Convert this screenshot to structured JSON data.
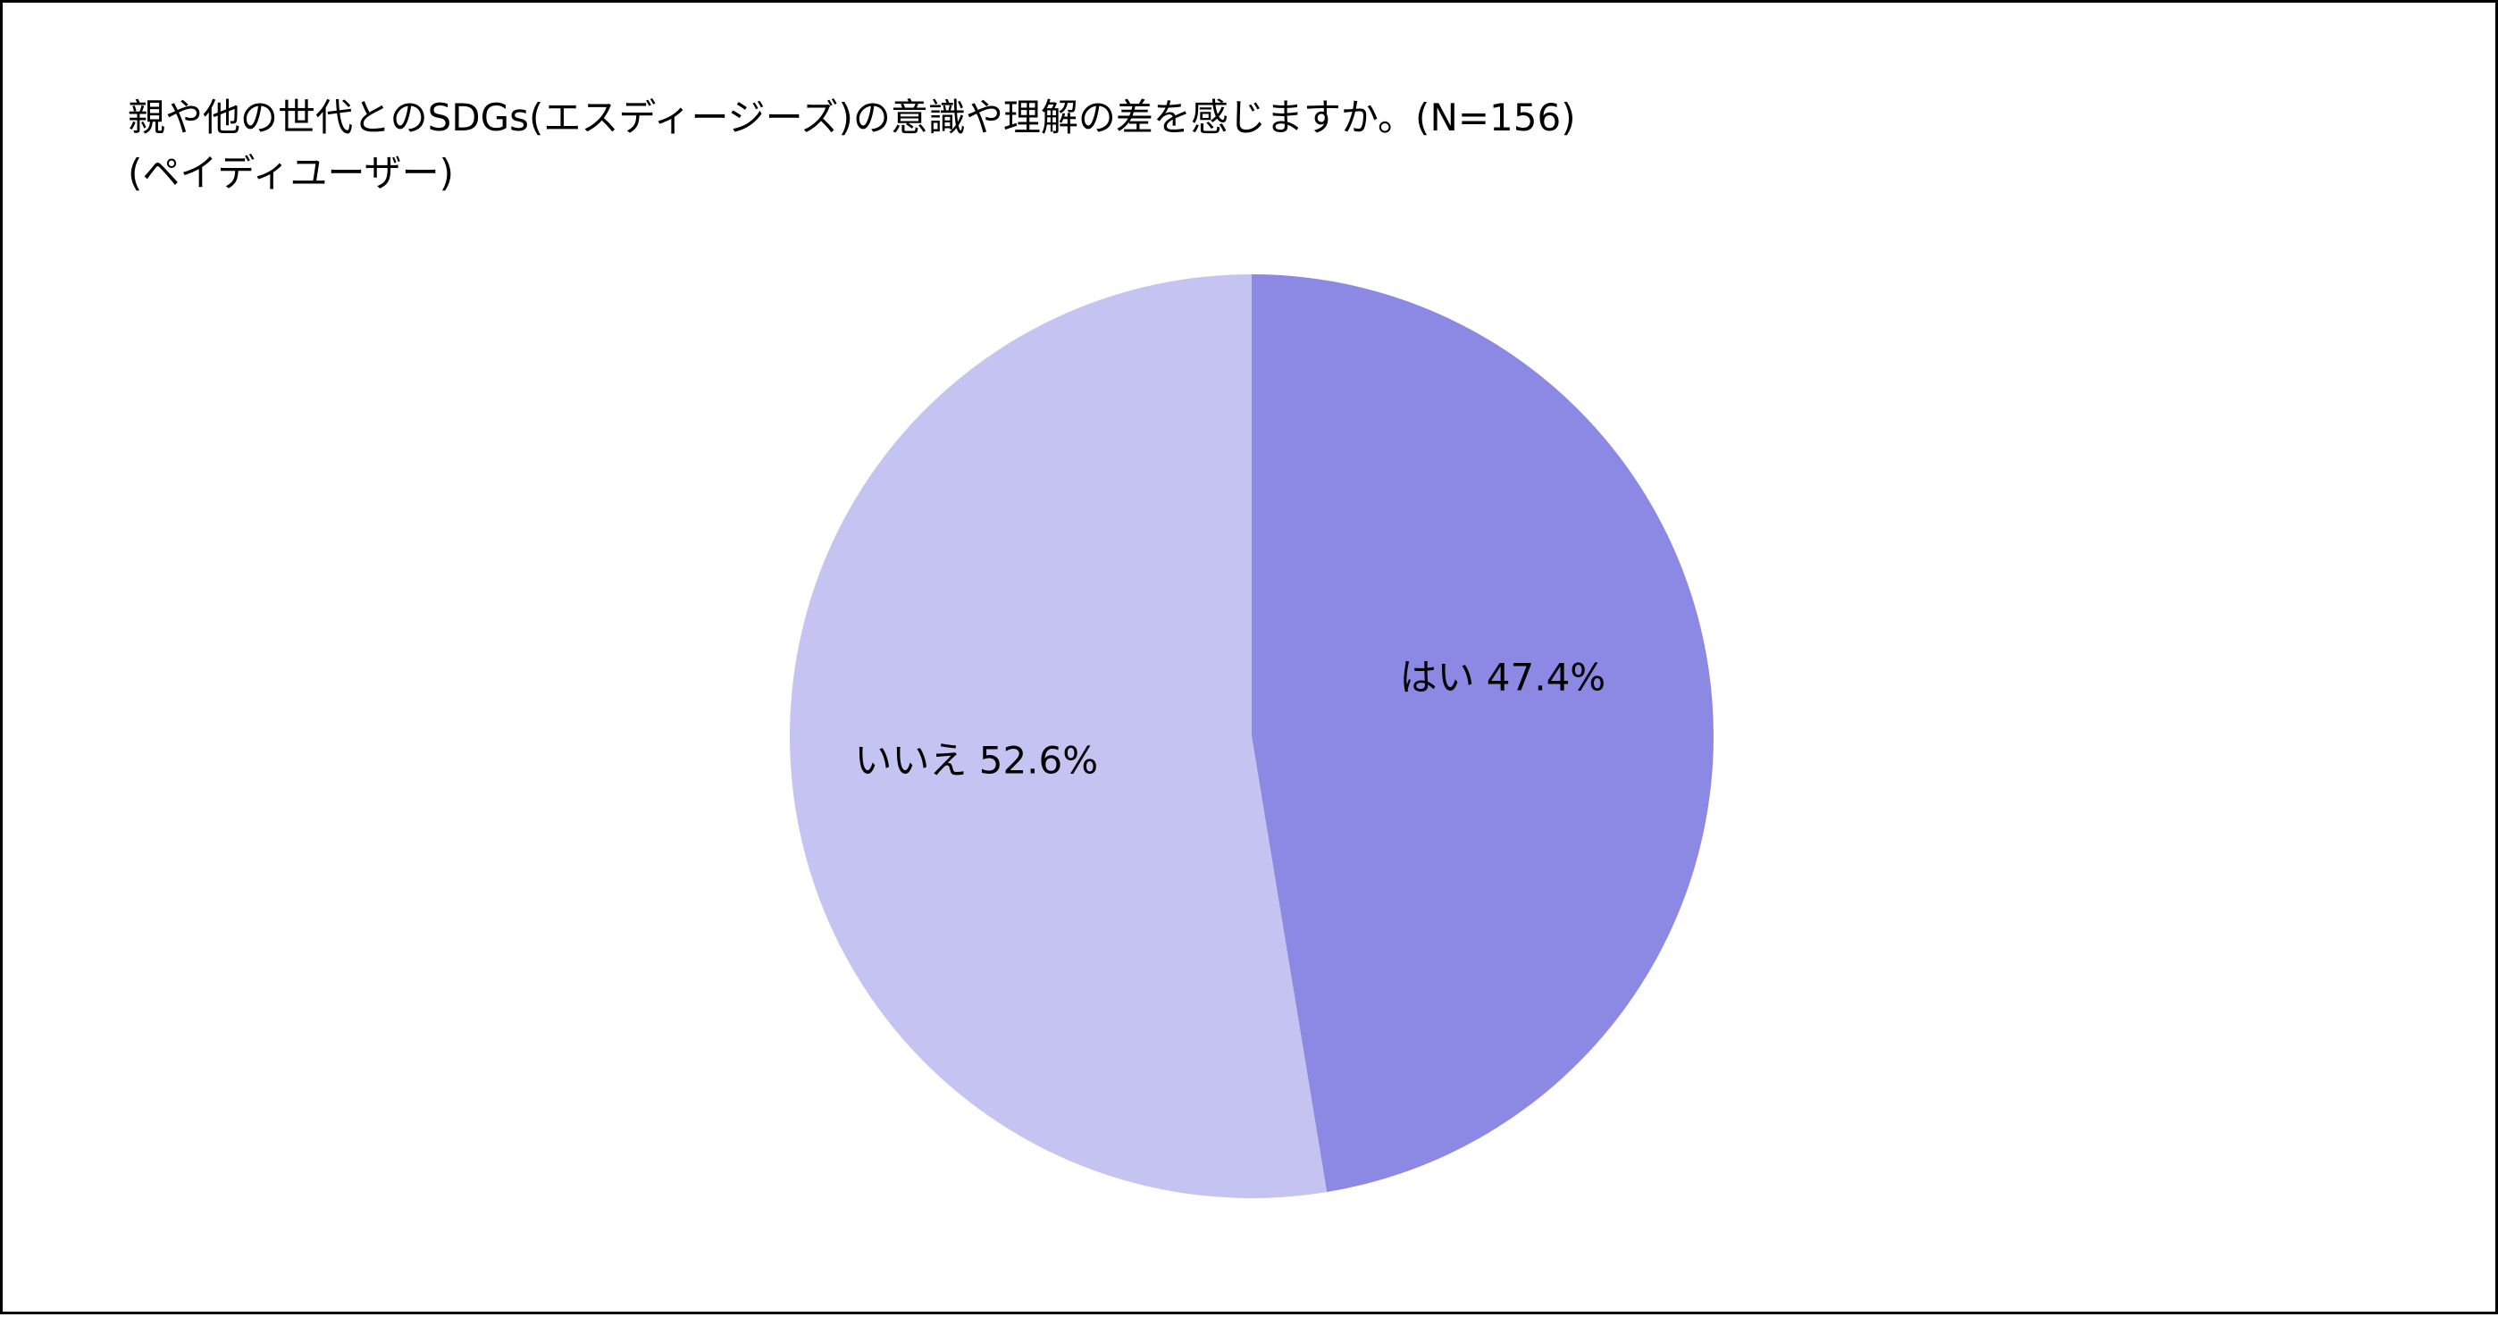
{
  "chart_data": {
    "type": "pie",
    "title": "親や他の世代とのSDGs(エスディージーズ)の意識や理解の差を感じますか。(N=156)",
    "subtitle": "(ペイディユーザー)",
    "slices": [
      {
        "label": "はい",
        "value": 47.4,
        "display": "はい 47.4%",
        "color": "#8b89e4"
      },
      {
        "label": "いいえ",
        "value": 52.6,
        "display": "いいえ 52.6%",
        "color": "#c5c3f2"
      }
    ],
    "unit": "%",
    "start_angle": "12 o'clock",
    "direction": "clockwise",
    "legend": "none",
    "labels_inside": true
  }
}
